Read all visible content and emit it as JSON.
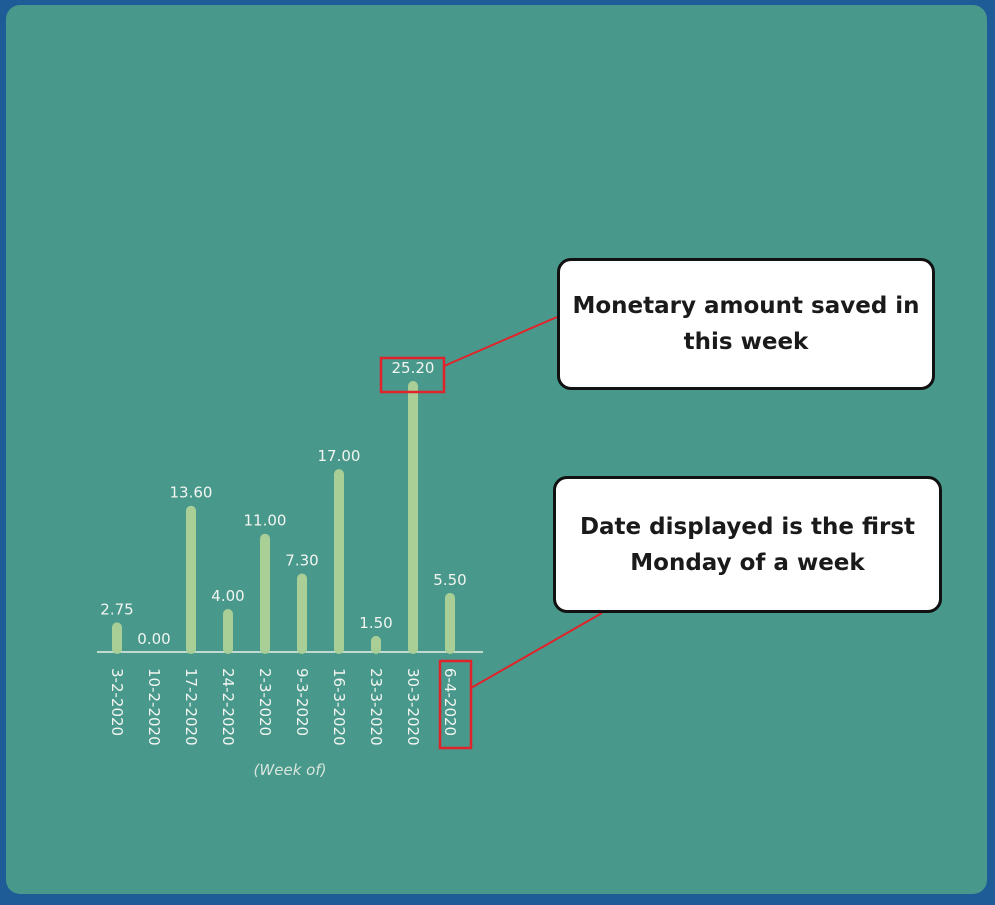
{
  "chart_data": {
    "type": "bar",
    "categories": [
      "3-2-2020",
      "10-2-2020",
      "17-2-2020",
      "24-2-2020",
      "2-3-2020",
      "9-3-2020",
      "16-3-2020",
      "23-3-2020",
      "30-3-2020",
      "6-4-2020"
    ],
    "values": [
      2.75,
      0.0,
      13.6,
      4.0,
      11.0,
      7.3,
      17.0,
      1.5,
      25.2,
      5.5
    ],
    "data_labels": [
      "2.75",
      "0.00",
      "13.60",
      "4.00",
      "11.00",
      "7.30",
      "17.00",
      "1.50",
      "25.20",
      "5.50"
    ],
    "xlabel": "(Week of)",
    "ylabel": "",
    "ylim": [
      0,
      25.2
    ],
    "grid": false,
    "bar_color": "#a9cf97"
  },
  "annotations": {
    "amount_callout": "Monetary amount saved in this week",
    "date_callout": "Date displayed is the first Monday of a week",
    "highlight_color": "#e0242a"
  }
}
